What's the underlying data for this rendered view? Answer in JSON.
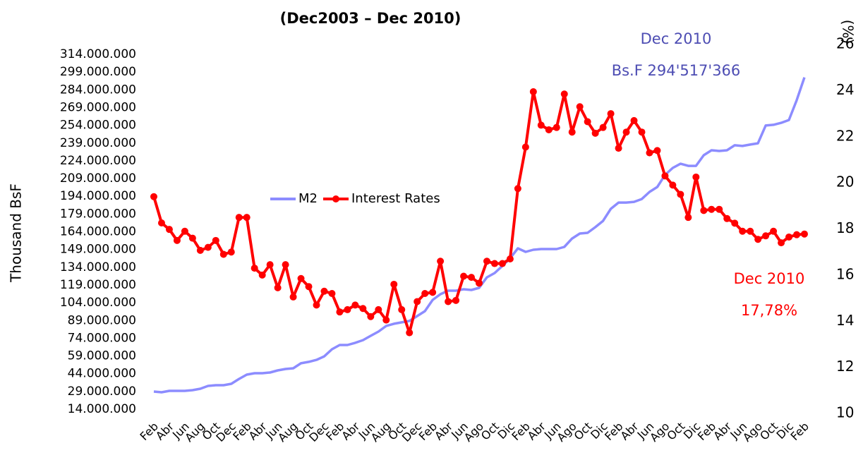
{
  "chart_data": {
    "type": "line",
    "title": "(Dec2003 – Dec 2010)",
    "y_label": "Thousand BsF",
    "y2_label": "(%)",
    "annotations": [
      {
        "lines": [
          "Dec 2010",
          "Bs.F 294'517'366"
        ],
        "color": "#4d4db3"
      },
      {
        "lines": [
          "Dec 2010",
          "17,78%"
        ],
        "color": "#ff0000"
      }
    ],
    "categories": [
      "Feb",
      null,
      "Abr",
      null,
      "Jun",
      null,
      "Aug",
      null,
      "Oct",
      null,
      "Dec",
      null,
      "Feb",
      null,
      "Abr",
      null,
      "Jun",
      null,
      "Aug",
      null,
      "Oct",
      null,
      "Dec",
      null,
      "Feb",
      null,
      "Abr",
      null,
      "Jun",
      null,
      "Aug",
      null,
      "Oct",
      null,
      "Dec",
      null,
      "Feb",
      null,
      "Abr",
      null,
      "Jun",
      null,
      "Ago",
      null,
      "Oct",
      null,
      "Dic",
      null,
      "Feb",
      null,
      "Abr",
      null,
      "Jun",
      null,
      "Ago",
      null,
      "Oct",
      null,
      "Dic",
      null,
      "Feb",
      null,
      "Abr",
      null,
      "Jun",
      null,
      "Ago",
      null,
      "Oct",
      null,
      "Dic",
      null,
      "Feb",
      null,
      "Abr",
      null,
      "Jun",
      null,
      "Ago",
      null,
      "Oct",
      null,
      "Dic",
      null,
      "Feb"
    ],
    "series": [
      {
        "name": "M2",
        "color": "#8c8cff",
        "marker": false,
        "values": [
          28900000,
          28300000,
          29500000,
          29500000,
          29500000,
          30100000,
          31300000,
          33700000,
          34300000,
          34300000,
          35500000,
          39600000,
          43200000,
          44400000,
          44400000,
          45000000,
          46800000,
          48000000,
          48600000,
          52800000,
          54000000,
          55700000,
          58700000,
          64700000,
          68300000,
          68300000,
          70100000,
          72400000,
          76000000,
          79600000,
          84400000,
          86200000,
          87400000,
          88600000,
          92700000,
          96900000,
          106400000,
          111200000,
          114200000,
          114200000,
          115400000,
          114800000,
          116600000,
          125500000,
          129100000,
          135100000,
          141600000,
          150000000,
          147000000,
          148800000,
          149400000,
          149400000,
          149400000,
          151200000,
          158300000,
          162500000,
          163100000,
          167900000,
          173200000,
          183400000,
          188700000,
          188700000,
          189300000,
          191700000,
          197700000,
          201900000,
          212000000,
          218000000,
          221500000,
          219700000,
          219700000,
          228700000,
          232900000,
          232300000,
          232900000,
          237100000,
          236500000,
          237700000,
          238800000,
          253800000,
          254400000,
          256100000,
          258500000,
          275200000,
          294517366
        ]
      },
      {
        "name": "Interest Rates",
        "color": "#ff0000",
        "marker": true,
        "axis": "y2",
        "values": [
          19.4,
          18.26,
          17.98,
          17.5,
          17.9,
          17.6,
          17.07,
          17.2,
          17.5,
          16.9,
          17.0,
          18.5,
          18.5,
          16.3,
          16.0,
          16.45,
          15.45,
          16.45,
          15.05,
          15.85,
          15.5,
          14.7,
          15.3,
          15.2,
          14.4,
          14.5,
          14.7,
          14.55,
          14.2,
          14.5,
          14.05,
          15.6,
          14.5,
          13.5,
          14.85,
          15.2,
          15.25,
          16.6,
          14.85,
          14.9,
          15.95,
          15.9,
          15.65,
          16.6,
          16.5,
          16.5,
          16.7,
          19.75,
          21.55,
          23.95,
          22.5,
          22.3,
          22.4,
          23.85,
          22.2,
          23.3,
          22.65,
          22.15,
          22.4,
          23.0,
          21.5,
          22.2,
          22.7,
          22.2,
          21.3,
          21.4,
          20.3,
          19.9,
          19.5,
          18.5,
          20.25,
          18.8,
          18.85,
          18.85,
          18.45,
          18.25,
          17.9,
          17.9,
          17.55,
          17.7,
          17.9,
          17.4,
          17.65,
          17.75,
          17.78
        ]
      }
    ],
    "ylim": [
      14000000,
      314000000
    ],
    "yticks": [
      {
        "value": 14000000,
        "label": "14.000.000"
      },
      {
        "value": 29000000,
        "label": "29.000.000"
      },
      {
        "value": 44000000,
        "label": "44.000.000"
      },
      {
        "value": 59000000,
        "label": "59.000.000"
      },
      {
        "value": 74000000,
        "label": "74.000.000"
      },
      {
        "value": 89000000,
        "label": "89.000.000"
      },
      {
        "value": 104000000,
        "label": "104.000.000"
      },
      {
        "value": 119000000,
        "label": "119.000.000"
      },
      {
        "value": 134000000,
        "label": "134.000.000"
      },
      {
        "value": 149000000,
        "label": "149.000.000"
      },
      {
        "value": 164000000,
        "label": "164.000.000"
      },
      {
        "value": 179000000,
        "label": "179.000.000"
      },
      {
        "value": 194000000,
        "label": "194.000.000"
      },
      {
        "value": 209000000,
        "label": "209.000.000"
      },
      {
        "value": 224000000,
        "label": "224.000.000"
      },
      {
        "value": 239000000,
        "label": "239.000.000"
      },
      {
        "value": 254000000,
        "label": "254.000.000"
      },
      {
        "value": 269000000,
        "label": "269.000.000"
      },
      {
        "value": 284000000,
        "label": "284.000.000"
      },
      {
        "value": 299000000,
        "label": "299.000.000"
      },
      {
        "value": 314000000,
        "label": "314.000.000"
      }
    ],
    "y2lim": [
      10,
      26
    ],
    "y2ticks": [
      10,
      12,
      14,
      16,
      18,
      20,
      22,
      24,
      26
    ]
  }
}
